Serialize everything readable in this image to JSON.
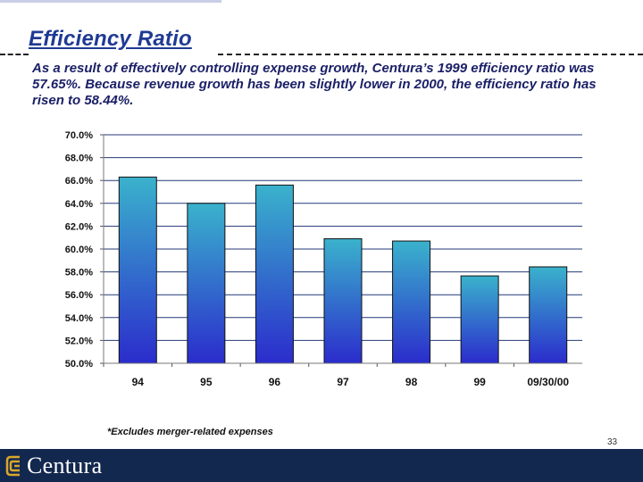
{
  "slide": {
    "title": "Efficiency Ratio",
    "subtitle": "As a result of effectively controlling expense growth, Centura’s 1999 efficiency ratio was 57.65%.  Because revenue growth has been slightly lower in 2000, the efficiency ratio has risen to 58.44%.",
    "footnote": "*Excludes merger-related expenses",
    "page_number": "33",
    "brand": "Centura"
  },
  "colors": {
    "title": "#1f3a93",
    "bar_top": "#3ab2cc",
    "bar_bottom": "#2b2ccc",
    "grid": "#243a7a",
    "footer": "#13284f"
  },
  "chart_data": {
    "type": "bar",
    "categories": [
      "94",
      "95",
      "96",
      "97",
      "98",
      "99",
      "09/30/00"
    ],
    "values": [
      66.3,
      64.0,
      65.6,
      60.9,
      60.7,
      57.65,
      58.44
    ],
    "title": "",
    "xlabel": "",
    "ylabel": "",
    "ylim": [
      50,
      70
    ],
    "yticks": [
      "50.0%",
      "52.0%",
      "54.0%",
      "56.0%",
      "58.0%",
      "60.0%",
      "62.0%",
      "64.0%",
      "66.0%",
      "68.0%",
      "70.0%"
    ],
    "grid": true,
    "legend": "none"
  }
}
